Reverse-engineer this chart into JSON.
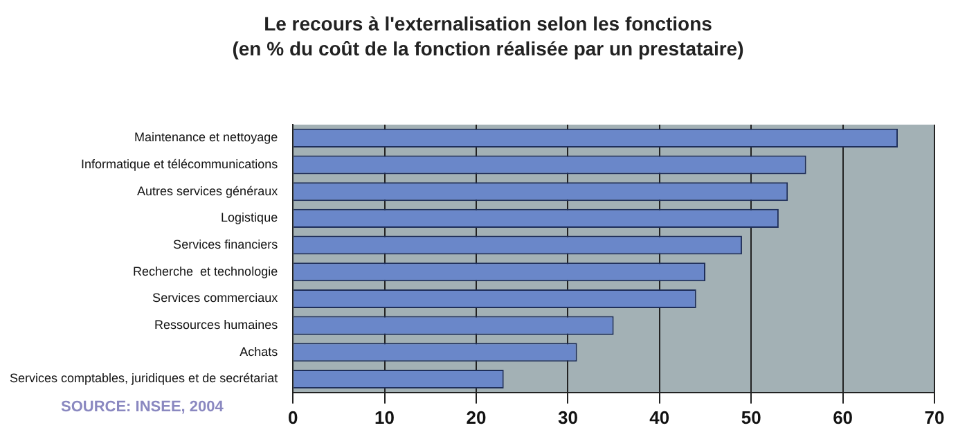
{
  "chart_data": {
    "type": "bar",
    "orientation": "horizontal",
    "title": "Le recours à l'externalisation selon les fonctions",
    "subtitle": "(en % du coût de la fonction réalisée par un prestataire)",
    "categories": [
      "Maintenance et nettoyage",
      "Informatique et télécommunications",
      "Autres services généraux",
      "Logistique",
      "Services financiers",
      "Recherche  et technologie",
      "Services commerciaux",
      "Ressources humaines",
      "Achats",
      "Services comptables, juridiques et de secrétariat"
    ],
    "values": [
      66,
      56,
      54,
      53,
      49,
      45,
      44,
      35,
      31,
      23
    ],
    "color": "#6a87c9",
    "xlim": [
      0,
      70
    ],
    "xticks": [
      0,
      10,
      20,
      30,
      40,
      50,
      60,
      70
    ],
    "grid": "x",
    "legend": false,
    "annotations": [
      "SOURCE: INSEE, 2004"
    ]
  }
}
